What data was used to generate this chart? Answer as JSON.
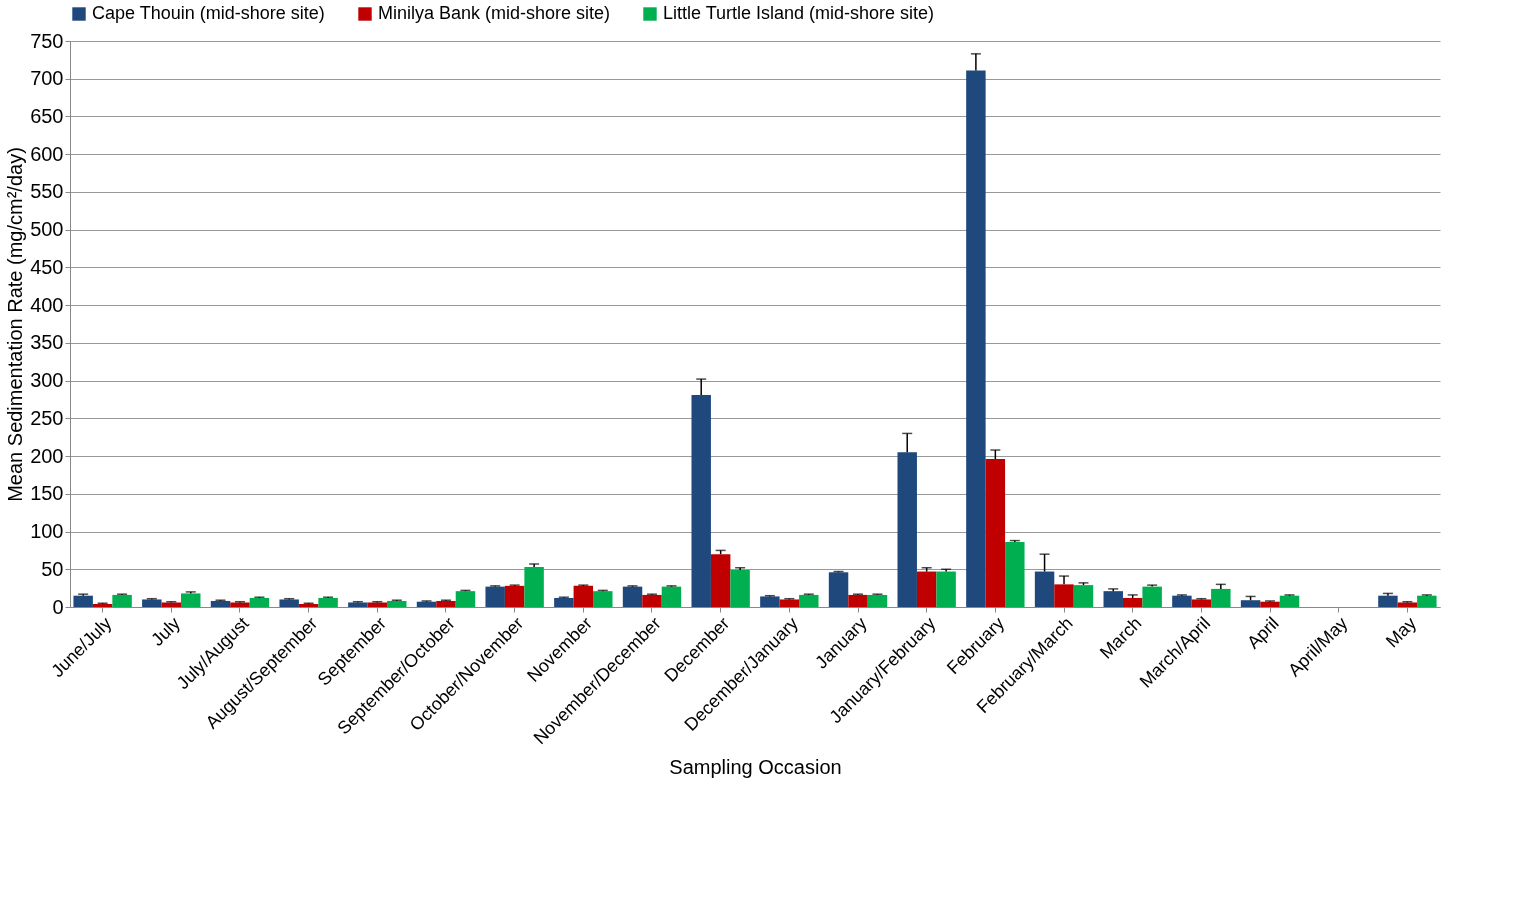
{
  "chart_data": {
    "type": "bar",
    "xlabel": "Sampling Occasion",
    "ylabel": "Mean Sedimentation Rate (mg/cm²/day)",
    "categories": [
      "June/July",
      "July",
      "July/August",
      "August/September",
      "September",
      "September/October",
      "October/November",
      "November",
      "November/December",
      "December",
      "December/January",
      "January",
      "January/February",
      "February",
      "February/March",
      "March",
      "March/April",
      "April",
      "April/May",
      "May"
    ],
    "series": [
      {
        "name": "Cape Thouin (mid-shore site)",
        "color": "#1f497d",
        "values": [
          15,
          10,
          8,
          10,
          6,
          7,
          27,
          12,
          27,
          281,
          14,
          46,
          205,
          711,
          47,
          21,
          15,
          9,
          null,
          15
        ],
        "errors": [
          2,
          1,
          1,
          1,
          1,
          1,
          1,
          1,
          1,
          21,
          1,
          1,
          25,
          22,
          23,
          3,
          1,
          5,
          null,
          3
        ]
      },
      {
        "name": "Minilya Bank (mid-shore site)",
        "color": "#c00000",
        "values": [
          4,
          6,
          6,
          4,
          6,
          8,
          28,
          28,
          16,
          70,
          10,
          16,
          47,
          196,
          30,
          12,
          10,
          7,
          null,
          6
        ],
        "errors": [
          1,
          1,
          1,
          1,
          1,
          1,
          1,
          1,
          1,
          5,
          1,
          1,
          5,
          12,
          11,
          4,
          1,
          1,
          null,
          1
        ]
      },
      {
        "name": "Little Turtle Island (mid-shore site)",
        "color": "#00b050",
        "values": [
          16,
          18,
          12,
          12,
          8,
          21,
          53,
          21,
          27,
          49,
          16,
          16,
          47,
          86,
          29,
          27,
          24,
          15,
          null,
          15
        ],
        "errors": [
          1,
          2,
          1,
          1,
          1,
          1,
          4,
          1,
          1,
          3,
          1,
          1,
          3,
          2,
          3,
          2,
          6,
          1,
          null,
          1
        ]
      }
    ],
    "ylim": [
      0,
      750
    ],
    "yticks": [
      0,
      50,
      100,
      150,
      200,
      250,
      300,
      350,
      400,
      450,
      500,
      550,
      600,
      650,
      700,
      750
    ],
    "grid": "y",
    "legend": "top"
  }
}
